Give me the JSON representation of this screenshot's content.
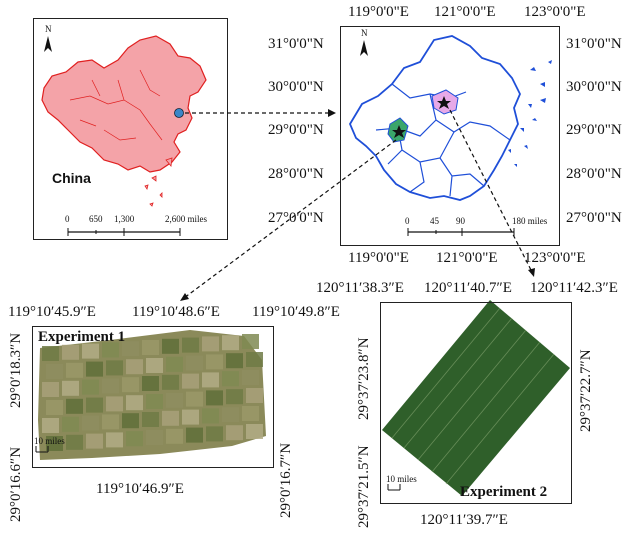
{
  "china_panel": {
    "name": "China",
    "north": "N",
    "scale_ticks": [
      "0",
      "650",
      "1,300",
      "2,600 miles"
    ]
  },
  "zhejiang_panel": {
    "north": "N",
    "lon_labels": [
      "119°0'0\"E",
      "121°0'0\"E",
      "123°0'0\"E"
    ],
    "lat_labels": [
      "31°0'0\"N",
      "30°0'0\"N",
      "29°0'0\"N",
      "28°0'0\"N",
      "27°0'0\"N"
    ],
    "scale_ticks": [
      "0",
      "45",
      "90",
      "180 miles"
    ],
    "lon_bottom_labels": [
      "119°0'0\"E",
      "121°0'0\"E",
      "123°0'0\"E"
    ]
  },
  "experiment1": {
    "title": "Experiment 1",
    "top_labels": [
      "119°10′45.9″E",
      "119°10′48.6″E",
      "119°10′49.8″E"
    ],
    "bottom_label": "119°10′46.9″E",
    "left_labels": [
      "29°0′18.3″N",
      "29°0′16.6″N"
    ],
    "right_label": "29°0′16.7″N",
    "scale": "10 miles"
  },
  "experiment2": {
    "title": "Experiment 2",
    "top_labels": [
      "120°11′38.3″E",
      "120°11′40.7″E",
      "120°11′42.3″E"
    ],
    "bottom_label": "120°11′39.7″E",
    "left_labels": [
      "29°37′23.8″N",
      "29°37′21.5″N"
    ],
    "right_label": "29°37′22.7″N",
    "scale": "10 miles"
  },
  "colors": {
    "china_fill": "#f4a3a8",
    "china_border": "#e02020",
    "province_line": "#1f4fd8",
    "site1": "#3aa66a",
    "site2": "#e7a9e8",
    "field_green": "#2f5f2a"
  }
}
